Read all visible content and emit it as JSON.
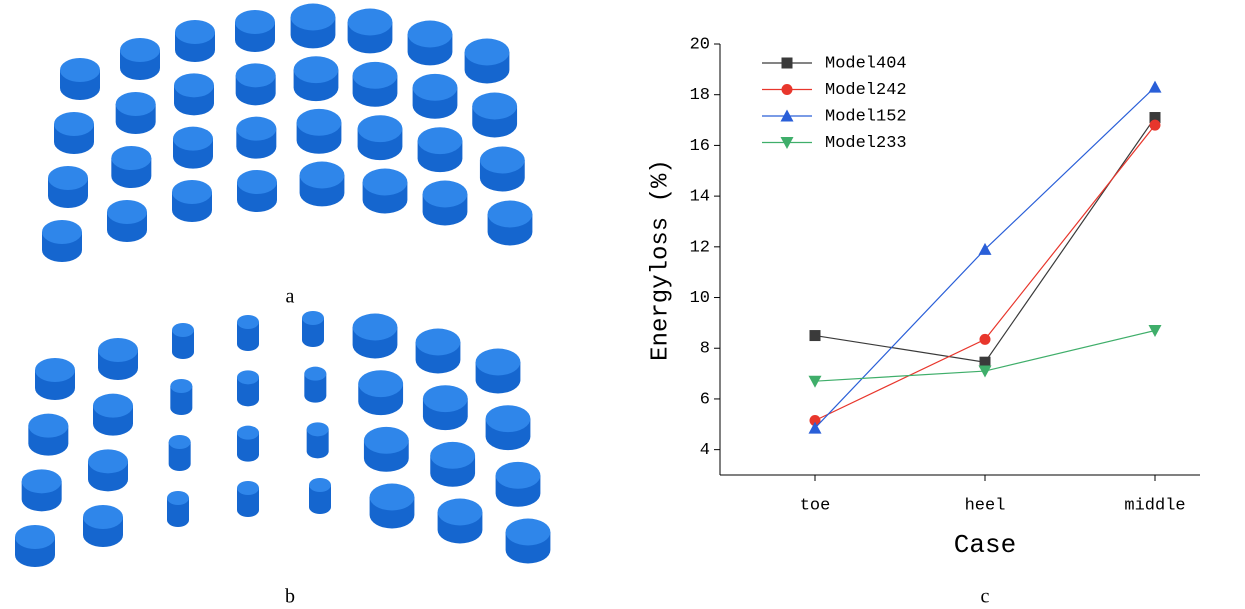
{
  "panels": [
    {
      "label": "a"
    },
    {
      "label": "b"
    },
    {
      "label": "c"
    }
  ],
  "chart_data": {
    "type": "line",
    "x_label": "Case",
    "y_label": "Energyloss (%)",
    "categories": [
      "toe",
      "heel",
      "middle"
    ],
    "series": [
      {
        "name": "Model404",
        "color": "#3a3a3a",
        "marker": "square",
        "values": [
          8.5,
          7.45,
          17.1
        ]
      },
      {
        "name": "Model242",
        "color": "#e8362c",
        "marker": "circle",
        "values": [
          5.15,
          8.35,
          16.8
        ]
      },
      {
        "name": "Model152",
        "color": "#2a5fd8",
        "marker": "triangle-up",
        "values": [
          4.85,
          11.9,
          18.3
        ]
      },
      {
        "name": "Model233",
        "color": "#3fae6a",
        "marker": "triangle-down",
        "values": [
          6.7,
          7.1,
          8.7
        ]
      }
    ],
    "ylim": [
      3,
      20
    ],
    "yticks": [
      4,
      6,
      8,
      10,
      12,
      14,
      16,
      18,
      20
    ],
    "legend": "top-left"
  }
}
